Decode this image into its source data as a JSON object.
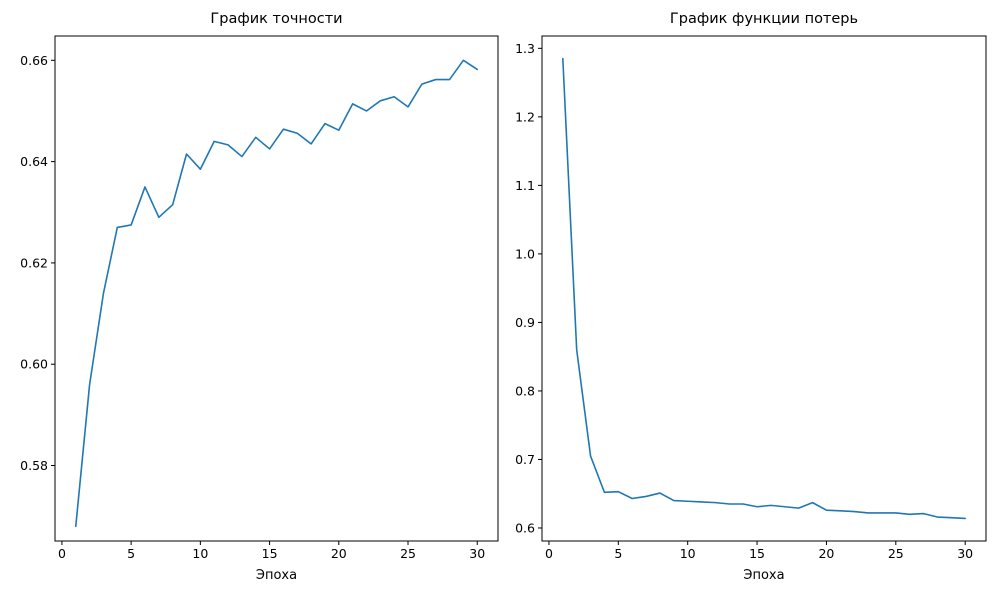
{
  "chart_data": [
    {
      "type": "line",
      "title": "График точности",
      "xlabel": "Эпоха",
      "ylabel": "",
      "xlim": [
        -0.5,
        31.5
      ],
      "ylim": [
        0.5651,
        0.6648
      ],
      "x_ticks": [
        0,
        5,
        10,
        15,
        20,
        25,
        30
      ],
      "y_ticks": [
        0.58,
        0.6,
        0.62,
        0.64,
        0.66
      ],
      "y_tick_labels": [
        "0.58",
        "0.60",
        "0.62",
        "0.64",
        "0.66"
      ],
      "grid": false,
      "color": "#1f77b4",
      "series": [
        {
          "x": [
            1,
            2,
            3,
            4,
            5,
            6,
            7,
            8,
            9,
            10,
            11,
            12,
            13,
            14,
            15,
            16,
            17,
            18,
            19,
            20,
            21,
            22,
            23,
            24,
            25,
            26,
            27,
            28,
            29,
            30
          ],
          "values": [
            0.568,
            0.596,
            0.614,
            0.627,
            0.6275,
            0.635,
            0.629,
            0.6315,
            0.6415,
            0.6385,
            0.644,
            0.6433,
            0.641,
            0.6448,
            0.6425,
            0.6464,
            0.6456,
            0.6435,
            0.6475,
            0.6462,
            0.6514,
            0.65,
            0.652,
            0.6528,
            0.6508,
            0.6553,
            0.6562,
            0.6562,
            0.66,
            0.6582
          ]
        }
      ]
    },
    {
      "type": "line",
      "title": "График функции потерь",
      "xlabel": "Эпоха",
      "ylabel": "",
      "xlim": [
        -0.5,
        31.5
      ],
      "ylim": [
        0.581,
        1.318
      ],
      "x_ticks": [
        0,
        5,
        10,
        15,
        20,
        25,
        30
      ],
      "y_ticks": [
        0.6,
        0.7,
        0.8,
        0.9,
        1.0,
        1.1,
        1.2,
        1.3
      ],
      "y_tick_labels": [
        "0.6",
        "0.7",
        "0.8",
        "0.9",
        "1.0",
        "1.1",
        "1.2",
        "1.3"
      ],
      "grid": false,
      "color": "#1f77b4",
      "series": [
        {
          "x": [
            1,
            2,
            3,
            4,
            5,
            6,
            7,
            8,
            9,
            10,
            11,
            12,
            13,
            14,
            15,
            16,
            17,
            18,
            19,
            20,
            21,
            22,
            23,
            24,
            25,
            26,
            27,
            28,
            29,
            30
          ],
          "values": [
            1.285,
            0.86,
            0.705,
            0.652,
            0.653,
            0.643,
            0.646,
            0.651,
            0.64,
            0.639,
            0.638,
            0.637,
            0.635,
            0.635,
            0.631,
            0.633,
            0.631,
            0.629,
            0.637,
            0.626,
            0.625,
            0.624,
            0.622,
            0.622,
            0.622,
            0.62,
            0.621,
            0.616,
            0.615,
            0.614
          ]
        }
      ]
    }
  ]
}
